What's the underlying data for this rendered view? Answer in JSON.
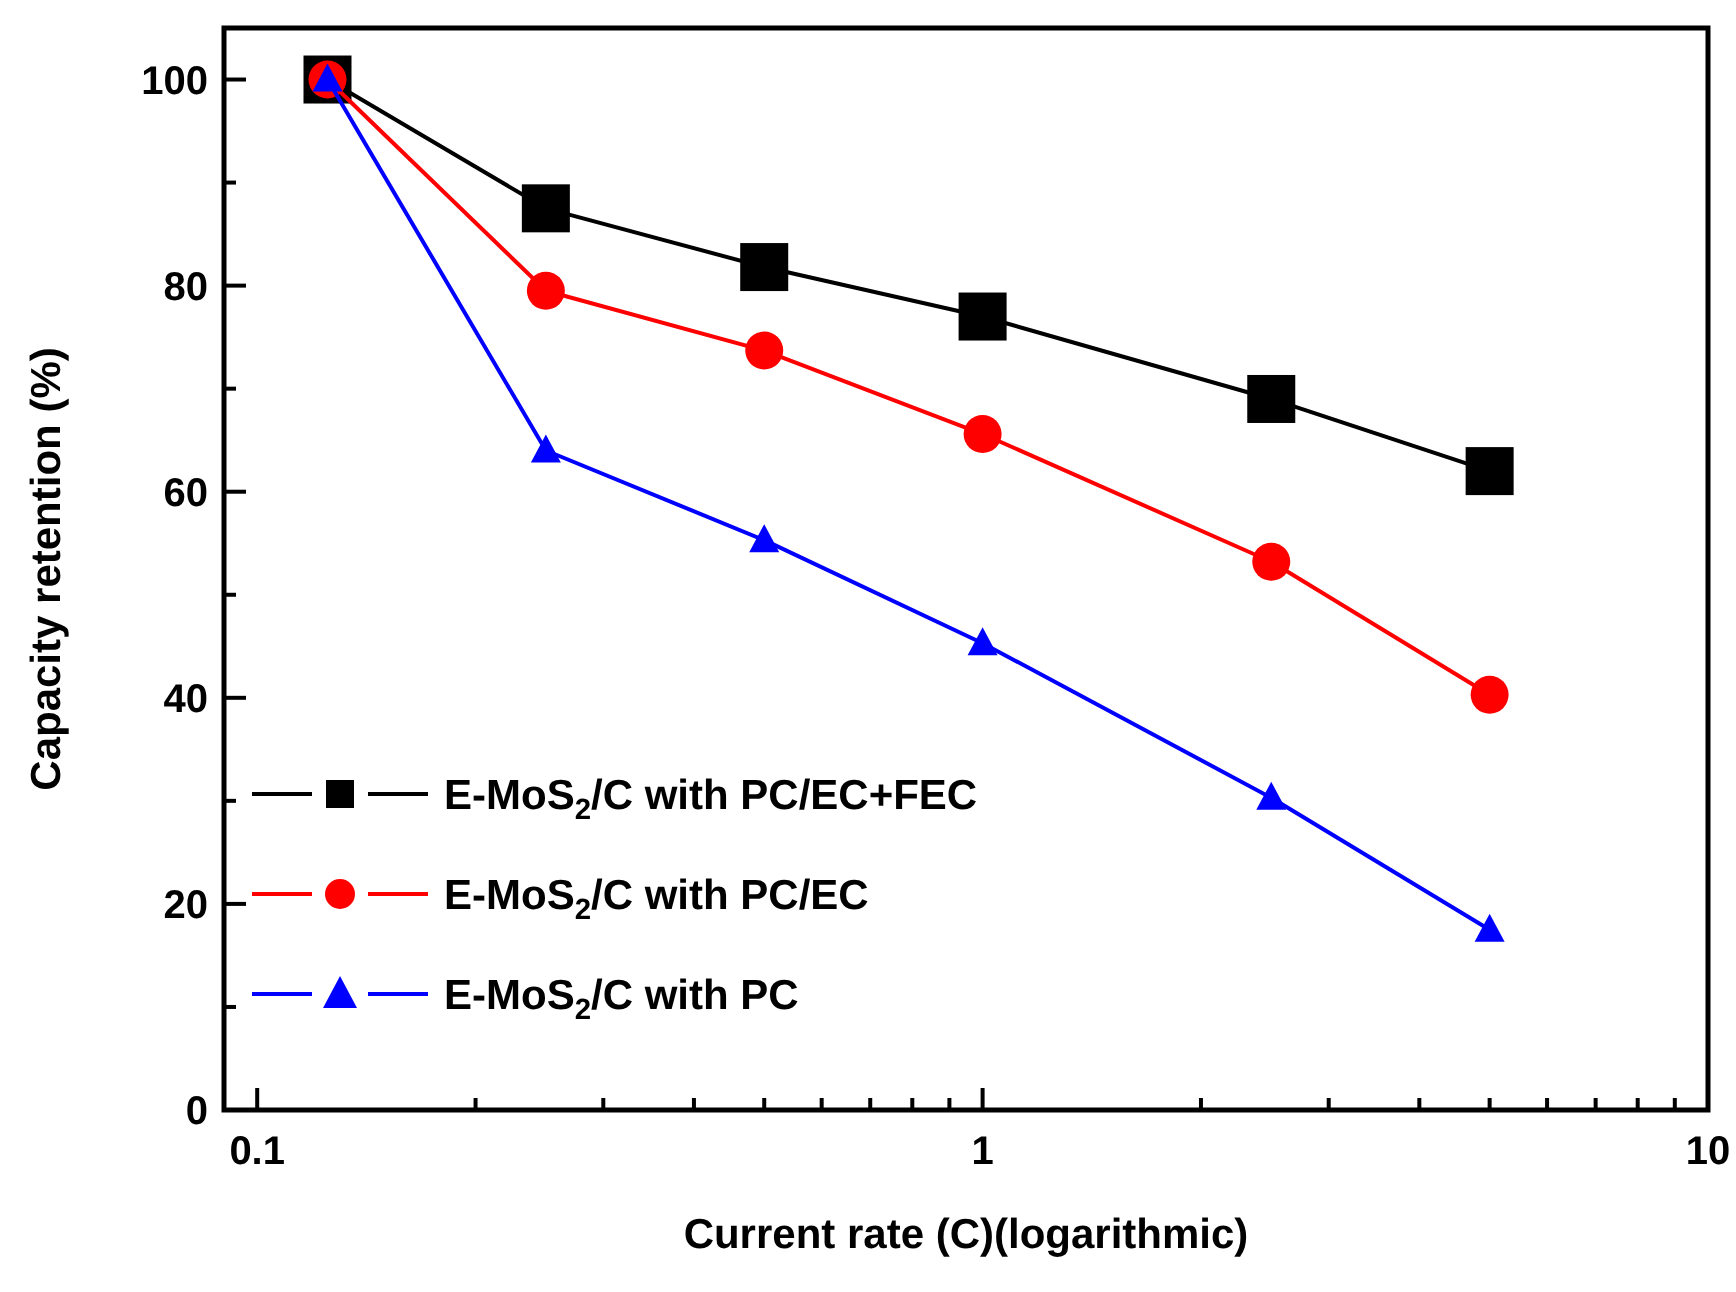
{
  "chart_data": {
    "type": "line",
    "xlabel": "Current rate (C)(logarithmic)",
    "ylabel": "Capacity retention (%)",
    "log": "x",
    "xlim": [
      0.09,
      10
    ],
    "ylim": [
      0,
      105
    ],
    "xticks": [
      0.1,
      {
        "value": 0.2,
        "label": null
      },
      {
        "value": 0.3,
        "label": null
      },
      {
        "value": 0.4,
        "label": null
      },
      {
        "value": 0.5,
        "label": null
      },
      {
        "value": 0.6,
        "label": null
      },
      {
        "value": 0.7,
        "label": null
      },
      {
        "value": 0.8,
        "label": null
      },
      {
        "value": 0.9,
        "label": null
      },
      1,
      {
        "value": 2,
        "label": null
      },
      {
        "value": 3,
        "label": null
      },
      {
        "value": 4,
        "label": null
      },
      {
        "value": 5,
        "label": null
      },
      {
        "value": 6,
        "label": null
      },
      {
        "value": 7,
        "label": null
      },
      {
        "value": 8,
        "label": null
      },
      {
        "value": 9,
        "label": null
      },
      10
    ],
    "yticks": [
      0,
      {
        "value": 10,
        "label": null
      },
      20,
      {
        "value": 30,
        "label": null
      },
      40,
      {
        "value": 50,
        "label": null
      },
      60,
      {
        "value": 70,
        "label": null
      },
      80,
      {
        "value": 90,
        "label": null
      },
      100
    ],
    "x": [
      0.125,
      0.25,
      0.5,
      1,
      2.5,
      5
    ],
    "grid": false,
    "legend": "bottom left",
    "line_style": "solid",
    "series": [
      {
        "name": "E-MoS$_{2}$/C with PC/EC+FEC",
        "color": "#000000",
        "marker": "square",
        "values": [
          100,
          87.5,
          81.8,
          77,
          69,
          62
        ]
      },
      {
        "name": "E-MoS$_{2}$/C with PC/EC",
        "color": "#ff0000",
        "marker": "circle",
        "values": [
          100,
          79.5,
          73.7,
          65.6,
          53.2,
          40.3
        ]
      },
      {
        "name": "E-MoS$_{2}$/C with PC",
        "color": "#0000ff",
        "marker": "triangle",
        "values": [
          100,
          64,
          55.3,
          45.3,
          30.3,
          17.5
        ]
      }
    ]
  }
}
